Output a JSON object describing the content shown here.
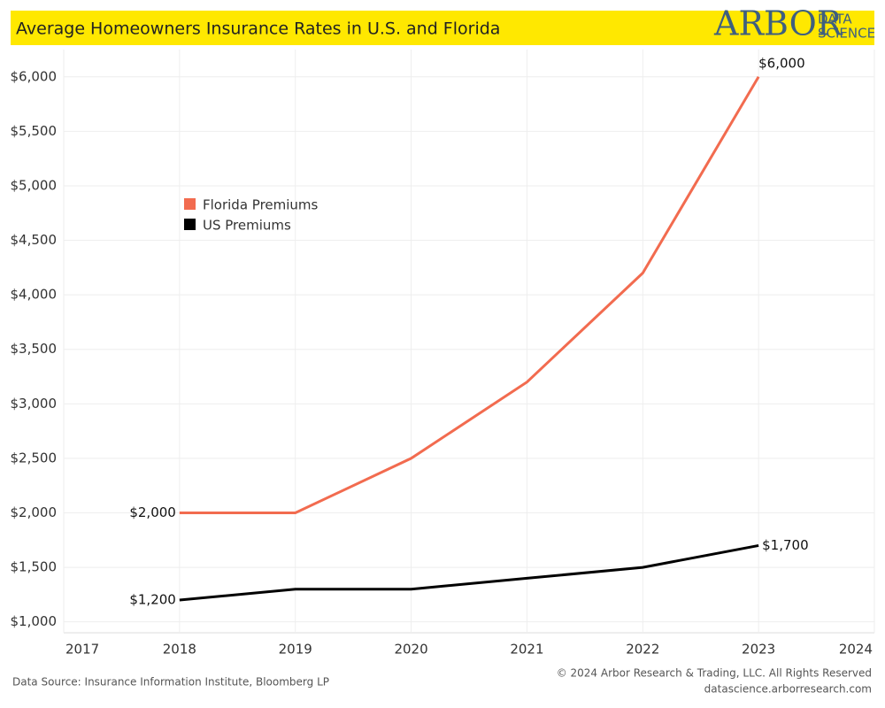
{
  "header": {
    "logo_main": "ARBOR",
    "logo_top": "DATA",
    "logo_bottom": "SCIENCE"
  },
  "footer": {
    "source": "Data Source: Insurance Information Institute, Bloomberg LP",
    "copyright": "© 2024 Arbor Research & Trading, LLC. All Rights Reserved",
    "website": "datascience.arborresearch.com"
  },
  "chart_data": {
    "type": "line",
    "title": "Average Homeowners Insurance Rates in U.S. and Florida",
    "x": [
      2018,
      2019,
      2020,
      2021,
      2022,
      2023
    ],
    "series": [
      {
        "name": "Florida Premiums",
        "color": "#f26b4f",
        "values": [
          2000,
          2000,
          2500,
          3200,
          4200,
          6000
        ],
        "value_labels": [
          "$2,000",
          null,
          null,
          null,
          null,
          "$6,000"
        ]
      },
      {
        "name": "US Premiums",
        "color": "#000000",
        "values": [
          1200,
          1300,
          1300,
          1400,
          1500,
          1700
        ],
        "value_labels": [
          "$1,200",
          null,
          null,
          null,
          null,
          "$1,700"
        ]
      }
    ],
    "xlim": [
      2017,
      2024
    ],
    "xticks": [
      2017,
      2018,
      2019,
      2020,
      2021,
      2022,
      2023,
      2024
    ],
    "ylim": [
      900,
      6250
    ],
    "yticks": [
      {
        "value": 1000,
        "label": "$1,000"
      },
      {
        "value": 1500,
        "label": "$1,500"
      },
      {
        "value": 2000,
        "label": "$2,000"
      },
      {
        "value": 2500,
        "label": "$2,500"
      },
      {
        "value": 3000,
        "label": "$3,000"
      },
      {
        "value": 3500,
        "label": "$3,500"
      },
      {
        "value": 4000,
        "label": "$4,000"
      },
      {
        "value": 4500,
        "label": "$4,500"
      },
      {
        "value": 5000,
        "label": "$5,000"
      },
      {
        "value": 5500,
        "label": "$5,500"
      },
      {
        "value": 6000,
        "label": "$6,000"
      }
    ],
    "grid": true
  }
}
